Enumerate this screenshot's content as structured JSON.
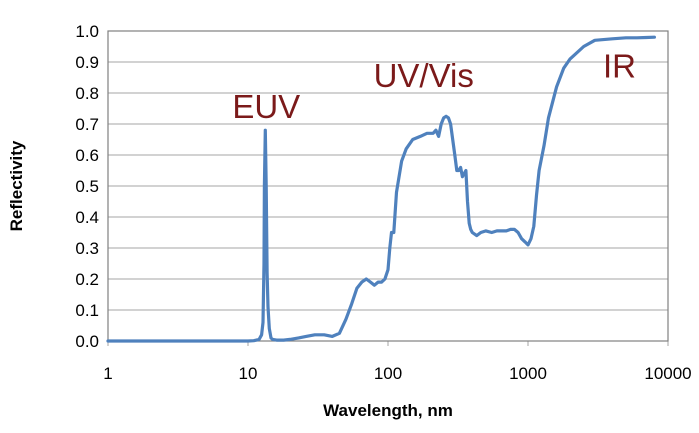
{
  "chart_data": {
    "type": "line",
    "title": "",
    "xlabel": "Wavelength, nm",
    "ylabel": "Reflectivity",
    "xscale": "log",
    "xlim": [
      1,
      10000
    ],
    "ylim": [
      0,
      1.0
    ],
    "grid": true,
    "legend": "none",
    "xticks": [
      "1",
      "10",
      "100",
      "1000",
      "10000"
    ],
    "yticks": [
      "0.0",
      "0.1",
      "0.2",
      "0.3",
      "0.4",
      "0.5",
      "0.6",
      "0.7",
      "0.8",
      "0.9",
      "1.0"
    ],
    "annotations": [
      {
        "text": "EUV",
        "x": 13.5,
        "y": 0.72
      },
      {
        "text": "UV/Vis",
        "x": 180,
        "y": 0.82
      },
      {
        "text": "IR",
        "x": 4500,
        "y": 0.85
      }
    ],
    "colors": {
      "series": "#4f81bd",
      "annotation": "#7b1a1a"
    },
    "series": [
      {
        "name": "",
        "x": [
          1,
          5,
          10,
          11,
          12,
          12.5,
          12.8,
          13.0,
          13.1,
          13.3,
          13.5,
          13.7,
          13.9,
          14.2,
          14.6,
          15,
          16,
          18,
          20,
          23,
          26,
          30,
          35,
          40,
          45,
          50,
          55,
          60,
          65,
          70,
          75,
          80,
          85,
          90,
          95,
          100,
          103,
          106,
          110,
          115,
          125,
          135,
          150,
          170,
          190,
          210,
          220,
          230,
          240,
          250,
          260,
          270,
          280,
          300,
          310,
          320,
          330,
          340,
          350,
          360,
          370,
          380,
          390,
          400,
          430,
          460,
          500,
          550,
          600,
          700,
          750,
          800,
          850,
          900,
          950,
          1000,
          1050,
          1100,
          1150,
          1200,
          1300,
          1400,
          1600,
          1800,
          2000,
          2500,
          3000,
          4000,
          5000,
          6000,
          7000,
          8000
        ],
        "y": [
          0,
          0,
          0,
          0.001,
          0.005,
          0.02,
          0.06,
          0.25,
          0.5,
          0.68,
          0.5,
          0.22,
          0.11,
          0.04,
          0.01,
          0.005,
          0.003,
          0.003,
          0.005,
          0.01,
          0.015,
          0.02,
          0.02,
          0.015,
          0.025,
          0.07,
          0.12,
          0.17,
          0.19,
          0.2,
          0.19,
          0.18,
          0.19,
          0.19,
          0.2,
          0.23,
          0.3,
          0.35,
          0.35,
          0.48,
          0.58,
          0.62,
          0.65,
          0.66,
          0.67,
          0.67,
          0.68,
          0.66,
          0.7,
          0.72,
          0.725,
          0.72,
          0.7,
          0.6,
          0.55,
          0.55,
          0.56,
          0.53,
          0.54,
          0.55,
          0.45,
          0.38,
          0.36,
          0.35,
          0.34,
          0.35,
          0.355,
          0.35,
          0.355,
          0.355,
          0.36,
          0.36,
          0.35,
          0.33,
          0.32,
          0.31,
          0.33,
          0.37,
          0.47,
          0.55,
          0.63,
          0.72,
          0.82,
          0.88,
          0.91,
          0.95,
          0.97,
          0.975,
          0.978,
          0.978,
          0.979,
          0.98
        ]
      }
    ]
  }
}
